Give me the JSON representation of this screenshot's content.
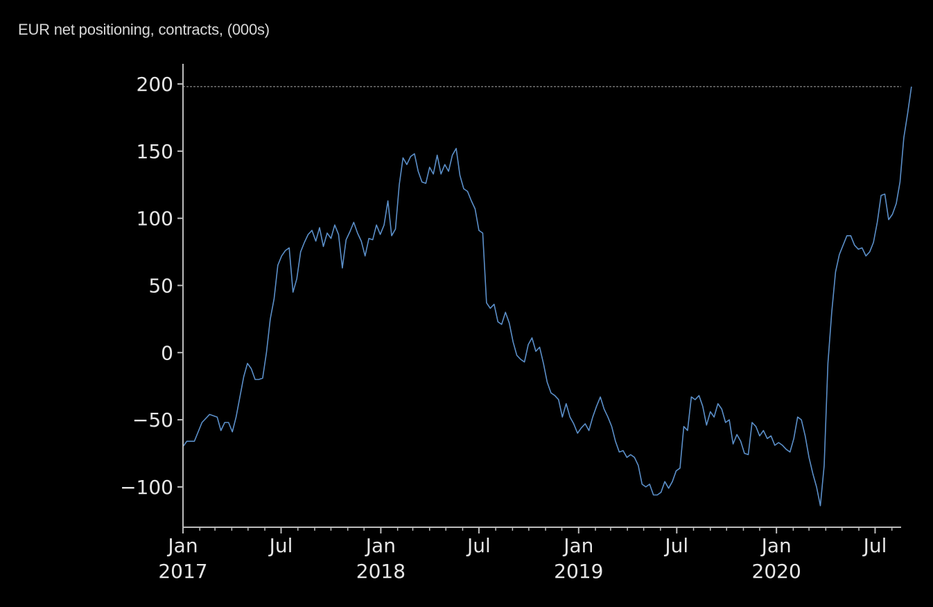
{
  "chart_data": {
    "type": "line",
    "title": "EUR net positioning, contracts, (000s)",
    "xlabel": "",
    "ylabel": "",
    "ylim": [
      -130,
      215
    ],
    "xlim": [
      "2017-01-01",
      "2020-08-18"
    ],
    "yticks": [
      200,
      150,
      100,
      50,
      0,
      -50,
      -100
    ],
    "ytick_labels": [
      "200",
      "150",
      "100",
      "50",
      "0",
      "−50",
      "−100"
    ],
    "xticks": [
      {
        "date": "2017-01-01",
        "label": [
          "Jan",
          "2017"
        ]
      },
      {
        "date": "2017-07-01",
        "label": [
          "Jul",
          ""
        ]
      },
      {
        "date": "2018-01-01",
        "label": [
          "Jan",
          "2018"
        ]
      },
      {
        "date": "2018-07-01",
        "label": [
          "Jul",
          ""
        ]
      },
      {
        "date": "2019-01-01",
        "label": [
          "Jan",
          "2019"
        ]
      },
      {
        "date": "2019-07-01",
        "label": [
          "Jul",
          ""
        ]
      },
      {
        "date": "2020-01-01",
        "label": [
          "Jan",
          "2020"
        ]
      },
      {
        "date": "2020-07-01",
        "label": [
          "Jul",
          ""
        ]
      }
    ],
    "reference_line": {
      "y": 198,
      "style": "dashed"
    },
    "line_color": "#5b8fc9",
    "grid": false,
    "legend": "none",
    "series": [
      {
        "points": [
          [
            "2017-01-01",
            -70
          ],
          [
            "2017-01-08",
            -66
          ],
          [
            "2017-01-22",
            -66
          ],
          [
            "2017-02-05",
            -52
          ],
          [
            "2017-02-19",
            -46
          ],
          [
            "2017-03-05",
            -48
          ],
          [
            "2017-03-12",
            -58
          ],
          [
            "2017-03-19",
            -52
          ],
          [
            "2017-03-26",
            -52
          ],
          [
            "2017-04-02",
            -59
          ],
          [
            "2017-04-09",
            -48
          ],
          [
            "2017-04-23",
            -18
          ],
          [
            "2017-04-30",
            -8
          ],
          [
            "2017-05-07",
            -12
          ],
          [
            "2017-05-14",
            -20
          ],
          [
            "2017-05-21",
            -20
          ],
          [
            "2017-05-28",
            -19
          ],
          [
            "2017-06-04",
            0
          ],
          [
            "2017-06-11",
            25
          ],
          [
            "2017-06-18",
            40
          ],
          [
            "2017-06-25",
            65
          ],
          [
            "2017-07-02",
            72
          ],
          [
            "2017-07-09",
            76
          ],
          [
            "2017-07-16",
            78
          ],
          [
            "2017-07-23",
            45
          ],
          [
            "2017-07-30",
            55
          ],
          [
            "2017-08-06",
            75
          ],
          [
            "2017-08-13",
            82
          ],
          [
            "2017-08-20",
            88
          ],
          [
            "2017-08-27",
            91
          ],
          [
            "2017-09-03",
            83
          ],
          [
            "2017-09-10",
            93
          ],
          [
            "2017-09-17",
            79
          ],
          [
            "2017-09-24",
            89
          ],
          [
            "2017-10-01",
            85
          ],
          [
            "2017-10-08",
            95
          ],
          [
            "2017-10-15",
            88
          ],
          [
            "2017-10-22",
            63
          ],
          [
            "2017-10-29",
            84
          ],
          [
            "2017-11-05",
            90
          ],
          [
            "2017-11-12",
            97
          ],
          [
            "2017-11-19",
            89
          ],
          [
            "2017-11-26",
            83
          ],
          [
            "2017-12-03",
            72
          ],
          [
            "2017-12-10",
            85
          ],
          [
            "2017-12-17",
            84
          ],
          [
            "2017-12-24",
            95
          ],
          [
            "2017-12-31",
            88
          ],
          [
            "2018-01-07",
            95
          ],
          [
            "2018-01-14",
            113
          ],
          [
            "2018-01-21",
            87
          ],
          [
            "2018-01-28",
            92
          ],
          [
            "2018-02-04",
            125
          ],
          [
            "2018-02-11",
            145
          ],
          [
            "2018-02-18",
            140
          ],
          [
            "2018-02-25",
            146
          ],
          [
            "2018-03-04",
            148
          ],
          [
            "2018-03-11",
            135
          ],
          [
            "2018-03-18",
            127
          ],
          [
            "2018-03-25",
            126
          ],
          [
            "2018-04-01",
            138
          ],
          [
            "2018-04-08",
            133
          ],
          [
            "2018-04-15",
            147
          ],
          [
            "2018-04-22",
            133
          ],
          [
            "2018-04-29",
            140
          ],
          [
            "2018-05-06",
            135
          ],
          [
            "2018-05-13",
            147
          ],
          [
            "2018-05-20",
            152
          ],
          [
            "2018-05-27",
            132
          ],
          [
            "2018-06-03",
            122
          ],
          [
            "2018-06-10",
            120
          ],
          [
            "2018-06-17",
            113
          ],
          [
            "2018-06-24",
            107
          ],
          [
            "2018-07-01",
            91
          ],
          [
            "2018-07-08",
            89
          ],
          [
            "2018-07-15",
            37
          ],
          [
            "2018-07-22",
            33
          ],
          [
            "2018-07-29",
            36
          ],
          [
            "2018-08-05",
            23
          ],
          [
            "2018-08-12",
            21
          ],
          [
            "2018-08-19",
            30
          ],
          [
            "2018-08-26",
            22
          ],
          [
            "2018-09-02",
            8
          ],
          [
            "2018-09-09",
            -2
          ],
          [
            "2018-09-16",
            -5
          ],
          [
            "2018-09-23",
            -7
          ],
          [
            "2018-09-30",
            6
          ],
          [
            "2018-10-07",
            11
          ],
          [
            "2018-10-14",
            1
          ],
          [
            "2018-10-21",
            4
          ],
          [
            "2018-10-28",
            -8
          ],
          [
            "2018-11-04",
            -22
          ],
          [
            "2018-11-11",
            -30
          ],
          [
            "2018-11-18",
            -32
          ],
          [
            "2018-11-25",
            -35
          ],
          [
            "2018-12-02",
            -48
          ],
          [
            "2018-12-09",
            -38
          ],
          [
            "2018-12-16",
            -48
          ],
          [
            "2018-12-23",
            -53
          ],
          [
            "2018-12-30",
            -60
          ],
          [
            "2019-01-06",
            -56
          ],
          [
            "2019-01-13",
            -53
          ],
          [
            "2019-01-20",
            -58
          ],
          [
            "2019-01-27",
            -48
          ],
          [
            "2019-02-03",
            -40
          ],
          [
            "2019-02-10",
            -33
          ],
          [
            "2019-02-17",
            -42
          ],
          [
            "2019-02-24",
            -48
          ],
          [
            "2019-03-03",
            -55
          ],
          [
            "2019-03-10",
            -66
          ],
          [
            "2019-03-17",
            -74
          ],
          [
            "2019-03-24",
            -73
          ],
          [
            "2019-03-31",
            -78
          ],
          [
            "2019-04-07",
            -76
          ],
          [
            "2019-04-14",
            -78
          ],
          [
            "2019-04-21",
            -84
          ],
          [
            "2019-04-28",
            -98
          ],
          [
            "2019-05-05",
            -100
          ],
          [
            "2019-05-12",
            -98
          ],
          [
            "2019-05-19",
            -106
          ],
          [
            "2019-05-26",
            -106
          ],
          [
            "2019-06-02",
            -104
          ],
          [
            "2019-06-09",
            -96
          ],
          [
            "2019-06-16",
            -101
          ],
          [
            "2019-06-23",
            -96
          ],
          [
            "2019-06-30",
            -88
          ],
          [
            "2019-07-07",
            -86
          ],
          [
            "2019-07-14",
            -55
          ],
          [
            "2019-07-21",
            -58
          ],
          [
            "2019-07-28",
            -33
          ],
          [
            "2019-08-04",
            -35
          ],
          [
            "2019-08-11",
            -32
          ],
          [
            "2019-08-18",
            -40
          ],
          [
            "2019-08-25",
            -54
          ],
          [
            "2019-09-01",
            -44
          ],
          [
            "2019-09-08",
            -48
          ],
          [
            "2019-09-15",
            -38
          ],
          [
            "2019-09-22",
            -42
          ],
          [
            "2019-09-29",
            -52
          ],
          [
            "2019-10-06",
            -50
          ],
          [
            "2019-10-13",
            -68
          ],
          [
            "2019-10-20",
            -61
          ],
          [
            "2019-10-27",
            -66
          ],
          [
            "2019-11-03",
            -75
          ],
          [
            "2019-11-10",
            -76
          ],
          [
            "2019-11-17",
            -52
          ],
          [
            "2019-11-24",
            -55
          ],
          [
            "2019-12-01",
            -62
          ],
          [
            "2019-12-08",
            -58
          ],
          [
            "2019-12-15",
            -64
          ],
          [
            "2019-12-22",
            -62
          ],
          [
            "2019-12-29",
            -69
          ],
          [
            "2020-01-05",
            -67
          ],
          [
            "2020-01-12",
            -69
          ],
          [
            "2020-01-19",
            -72
          ],
          [
            "2020-01-26",
            -74
          ],
          [
            "2020-02-02",
            -64
          ],
          [
            "2020-02-09",
            -48
          ],
          [
            "2020-02-16",
            -50
          ],
          [
            "2020-02-23",
            -62
          ],
          [
            "2020-03-01",
            -78
          ],
          [
            "2020-03-08",
            -90
          ],
          [
            "2020-03-15",
            -100
          ],
          [
            "2020-03-22",
            -114
          ],
          [
            "2020-03-29",
            -84
          ],
          [
            "2020-04-05",
            -8
          ],
          [
            "2020-04-12",
            30
          ],
          [
            "2020-04-19",
            60
          ],
          [
            "2020-04-26",
            73
          ],
          [
            "2020-05-03",
            80
          ],
          [
            "2020-05-10",
            87
          ],
          [
            "2020-05-17",
            87
          ],
          [
            "2020-05-24",
            80
          ],
          [
            "2020-05-31",
            77
          ],
          [
            "2020-06-07",
            78
          ],
          [
            "2020-06-14",
            72
          ],
          [
            "2020-06-21",
            75
          ],
          [
            "2020-06-28",
            82
          ],
          [
            "2020-07-05",
            97
          ],
          [
            "2020-07-12",
            117
          ],
          [
            "2020-07-19",
            118
          ],
          [
            "2020-07-26",
            99
          ],
          [
            "2020-08-02",
            103
          ],
          [
            "2020-08-09",
            111
          ],
          [
            "2020-08-16",
            127
          ],
          [
            "2020-08-23",
            160
          ],
          [
            "2020-08-30",
            178
          ],
          [
            "2020-09-06",
            198
          ]
        ]
      }
    ]
  }
}
